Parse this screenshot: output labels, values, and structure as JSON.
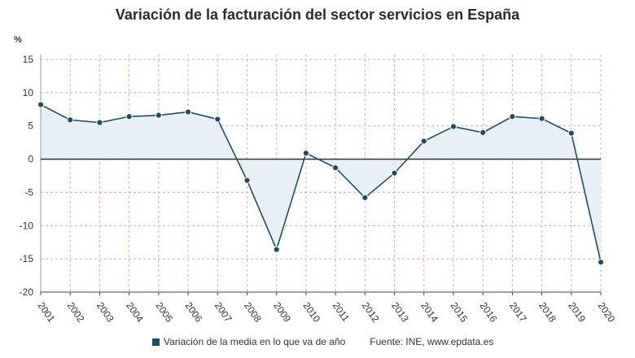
{
  "chart_data": {
    "type": "line",
    "title": "Variación de la facturación del sector servicios en España",
    "ylabel": "%",
    "ylim": [
      -20,
      15
    ],
    "yticks": [
      15,
      10,
      5,
      0,
      -5,
      -10,
      -15,
      -20
    ],
    "x": [
      "2001",
      "2002",
      "2003",
      "2004",
      "2005",
      "2006",
      "2007",
      "2008",
      "2009",
      "2010",
      "2011",
      "2012",
      "2013",
      "2014",
      "2015",
      "2016",
      "2017",
      "2018",
      "2019",
      "2020"
    ],
    "series": [
      {
        "name": "Variación de la media en lo que va de año",
        "values": [
          8.2,
          5.9,
          5.5,
          6.4,
          6.6,
          7.1,
          6.0,
          -3.2,
          -13.6,
          0.9,
          -1.3,
          -5.8,
          -2.1,
          2.7,
          4.9,
          4.0,
          6.4,
          6.1,
          3.9,
          -15.5
        ]
      }
    ],
    "grid": true,
    "legend_position": "bottom",
    "source": "Fuente: INE, www.epdata.es",
    "colors": {
      "line": "#1e4d63",
      "marker": "#1e4d63",
      "fill": "#e9f0f5",
      "grid": "#cfa8df",
      "zero": "#333333"
    }
  }
}
